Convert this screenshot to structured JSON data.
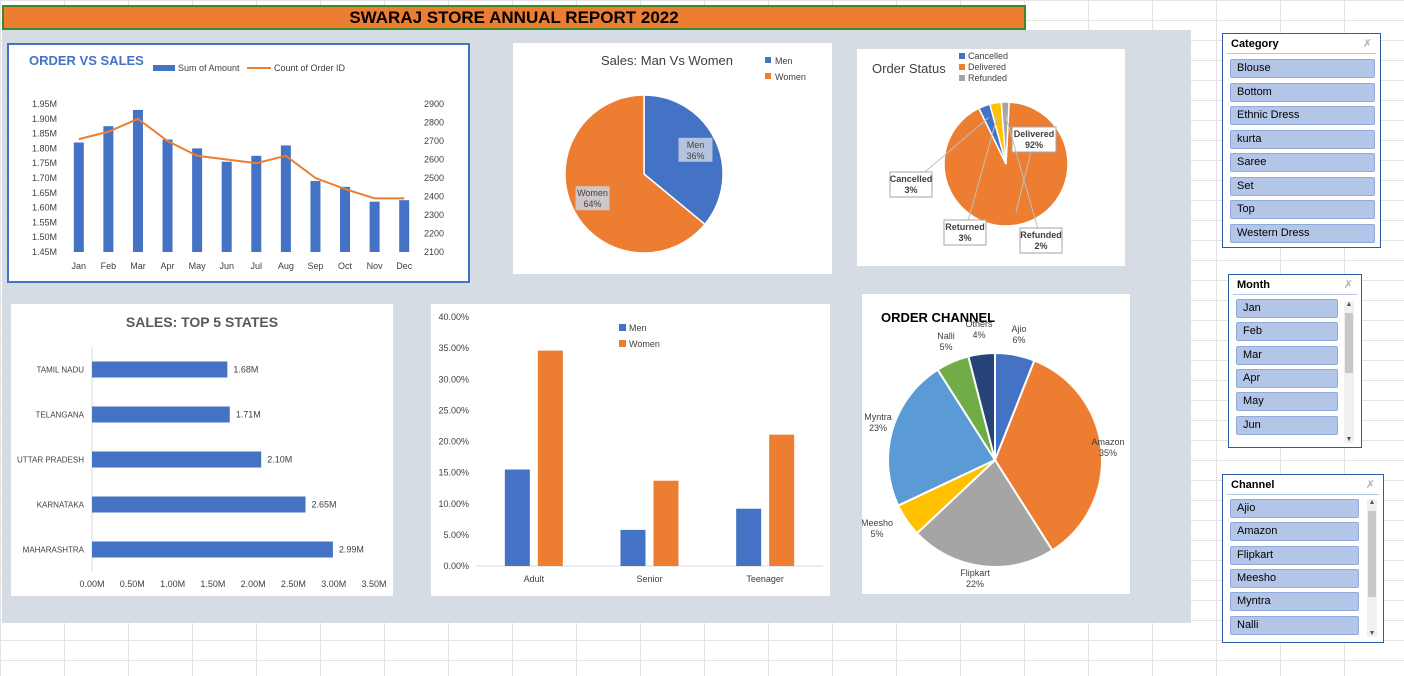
{
  "report_title": "SWARAJ STORE ANNUAL REPORT 2022",
  "colors": {
    "blue": "#4472c4",
    "orange": "#ed7d31",
    "gray": "#a5a5a5",
    "yellow": "#ffc000",
    "lightblue": "#5b9bd5",
    "green": "#70ad47",
    "navy": "#264478"
  },
  "slicers": {
    "category": {
      "title": "Category",
      "items": [
        "Blouse",
        "Bottom",
        "Ethnic Dress",
        "kurta",
        "Saree",
        "Set",
        "Top",
        "Western Dress"
      ]
    },
    "month": {
      "title": "Month",
      "items": [
        "Jan",
        "Feb",
        "Mar",
        "Apr",
        "May",
        "Jun"
      ]
    },
    "channel": {
      "title": "Channel",
      "items": [
        "Ajio",
        "Amazon",
        "Flipkart",
        "Meesho",
        "Myntra",
        "Nalli"
      ]
    },
    "clear_icon": "filter-clear-icon"
  },
  "chart_data": [
    {
      "id": "order_vs_sales",
      "type": "bar",
      "title": "ORDER VS  SALES",
      "categories": [
        "Jan",
        "Feb",
        "Mar",
        "Apr",
        "May",
        "Jun",
        "Jul",
        "Aug",
        "Sep",
        "Oct",
        "Nov",
        "Dec"
      ],
      "series": [
        {
          "name": "Sum of Amount",
          "type": "bar",
          "axis": "left",
          "values": [
            1.82,
            1.875,
            1.93,
            1.83,
            1.8,
            1.755,
            1.775,
            1.81,
            1.69,
            1.67,
            1.62,
            1.625
          ]
        },
        {
          "name": "Count of Order ID",
          "type": "line",
          "axis": "right",
          "values": [
            2710,
            2750,
            2820,
            2700,
            2620,
            2600,
            2580,
            2620,
            2500,
            2440,
            2390,
            2390
          ]
        }
      ],
      "y_left": {
        "ticks": [
          "1.45M",
          "1.50M",
          "1.55M",
          "1.60M",
          "1.65M",
          "1.70M",
          "1.75M",
          "1.80M",
          "1.85M",
          "1.90M",
          "1.95M"
        ],
        "range": [
          1.45,
          1.95
        ]
      },
      "y_right": {
        "ticks": [
          "2100",
          "2200",
          "2300",
          "2400",
          "2500",
          "2600",
          "2700",
          "2800",
          "2900"
        ],
        "range": [
          2100,
          2900
        ]
      },
      "legend": "top"
    },
    {
      "id": "sales_men_women",
      "type": "pie",
      "title": "Sales: Man  Vs Women",
      "slices": [
        {
          "name": "Men",
          "value": 36,
          "label": "Men\n36%"
        },
        {
          "name": "Women",
          "value": 64,
          "label": "Women\n64%"
        }
      ],
      "legend": "right"
    },
    {
      "id": "order_status",
      "type": "pie",
      "title": "Order Status",
      "legend_entries": [
        "Cancelled",
        "Delivered",
        "Refunded"
      ],
      "slices": [
        {
          "name": "Delivered",
          "value": 92,
          "label": "Delivered\n92%"
        },
        {
          "name": "Cancelled",
          "value": 3,
          "label": "Cancelled\n3%"
        },
        {
          "name": "Returned",
          "value": 3,
          "label": "Returned\n3%"
        },
        {
          "name": "Refunded",
          "value": 2,
          "label": "Refunded\n2%"
        }
      ],
      "legend": "top"
    },
    {
      "id": "top5_states",
      "type": "bar",
      "orientation": "horizontal",
      "title": "SALES: TOP 5 STATES",
      "categories": [
        "TAMIL NADU",
        "TELANGANA",
        "UTTAR PRADESH",
        "KARNATAKA",
        "MAHARASHTRA"
      ],
      "values": [
        1.68,
        1.71,
        2.1,
        2.65,
        2.99
      ],
      "data_labels": [
        "1.68M",
        "1.71M",
        "2.10M",
        "2.65M",
        "2.99M"
      ],
      "x_ticks": [
        "0.00M",
        "0.50M",
        "1.00M",
        "1.50M",
        "2.00M",
        "2.50M",
        "3.00M",
        "3.50M"
      ],
      "xlim": [
        0,
        3.5
      ]
    },
    {
      "id": "age_group_gender",
      "type": "bar",
      "categories": [
        "Adult",
        "Senior",
        "Teenager"
      ],
      "series": [
        {
          "name": "Men",
          "values": [
            15.5,
            5.8,
            9.2
          ]
        },
        {
          "name": "Women",
          "values": [
            34.6,
            13.7,
            21.1
          ]
        }
      ],
      "y_ticks": [
        "0.00%",
        "5.00%",
        "10.00%",
        "15.00%",
        "20.00%",
        "25.00%",
        "30.00%",
        "35.00%",
        "40.00%"
      ],
      "ylim": [
        0,
        40
      ],
      "legend": "top"
    },
    {
      "id": "order_channel",
      "type": "pie",
      "title": "ORDER CHANNEL",
      "slices": [
        {
          "name": "Ajio",
          "value": 6,
          "label": "Ajio\n6%"
        },
        {
          "name": "Amazon",
          "value": 35,
          "label": "Amazon\n35%"
        },
        {
          "name": "Flipkart",
          "value": 22,
          "label": "Flipkart\n22%"
        },
        {
          "name": "Meesho",
          "value": 5,
          "label": "Meesho\n5%"
        },
        {
          "name": "Myntra",
          "value": 23,
          "label": "Myntra\n23%"
        },
        {
          "name": "Nalli",
          "value": 5,
          "label": "Nalli\n5%"
        },
        {
          "name": "Others",
          "value": 4,
          "label": "Others\n4%"
        }
      ]
    }
  ]
}
